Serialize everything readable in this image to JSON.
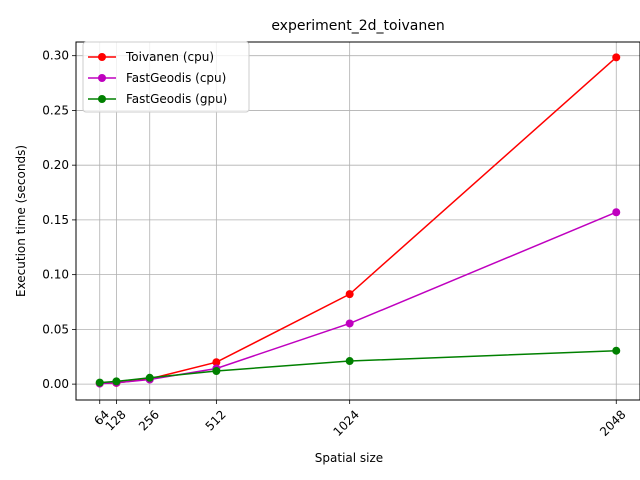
{
  "chart_data": {
    "type": "line",
    "title": "experiment_2d_toivanen",
    "xlabel": "Spatial size",
    "ylabel": "Execution time (seconds)",
    "x": [
      64,
      128,
      256,
      512,
      1024,
      2048
    ],
    "x_tick_labels": [
      "64",
      "128",
      "256",
      "512",
      "1024",
      "2048"
    ],
    "y_ticks": [
      0.0,
      0.05,
      0.1,
      0.15,
      0.2,
      0.25,
      0.3
    ],
    "y_tick_labels": [
      "0.00",
      "0.05",
      "0.10",
      "0.15",
      "0.20",
      "0.25",
      "0.30"
    ],
    "xlim": [
      -27.2,
      2139.2
    ],
    "ylim": [
      -0.0145,
      0.3125
    ],
    "grid": true,
    "legend_position": "top-left",
    "series": [
      {
        "name": "Toivanen (cpu)",
        "color": "#ff0000",
        "values": [
          0.0007,
          0.0011,
          0.0048,
          0.02,
          0.0822,
          0.2985
        ]
      },
      {
        "name": "FastGeodis (cpu)",
        "color": "#bf00bf",
        "values": [
          0.0005,
          0.0012,
          0.0042,
          0.0143,
          0.0554,
          0.157
        ]
      },
      {
        "name": "FastGeodis (gpu)",
        "color": "#008000",
        "values": [
          0.0014,
          0.0025,
          0.0058,
          0.012,
          0.0211,
          0.0305
        ]
      }
    ]
  }
}
